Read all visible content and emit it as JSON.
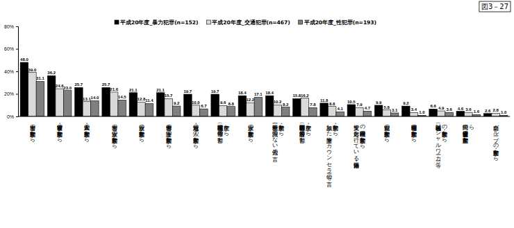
{
  "chart_data": {
    "type": "bar",
    "title": "図3－27",
    "categories": [
      "加害者の言動・態度から",
      "警察官・検事の言動・態度から",
      "友人・知人の言動・態度から",
      "加害者の家族の言動・態度から",
      "親族の言動・態度から",
      "加害者側の弁護士の言動・態度から",
      "近所・地域の人の言動・態度から",
      "職場関係者（上司や同僚等）の言動・態度から",
      "家族の言動・態度から",
      "世間一般（全く面識のない他人）の言動・態度から",
      "医療関係者（医師や看護師等）の言動・態度から",
      "相談した弁護士やカウンセラー等の言動・態度から",
      "支援や対応を行っている国・自治体等の行政機関の言動・態度から",
      "裁判官の言動・態度から",
      "報道関係者の言動・態度から",
      "福祉関係者（ソーシャルワーカー等）の言動・態度から",
      "民間の被害者支援団体の言動・態度から",
      "自助グループの言動・態度から"
    ],
    "series": [
      {
        "name": "平成20年度_暴力犯罪(n=152)",
        "color": "#000000",
        "values": [
          48.0,
          36.2,
          25.7,
          25.7,
          21.1,
          21.1,
          19.7,
          19.7,
          18.4,
          18.4,
          15.8,
          11.8,
          10.5,
          9.9,
          9.2,
          6.6,
          4.6,
          2.6
        ]
      },
      {
        "name": "平成20年度_交通犯罪(n=467)",
        "color": "#d9d9d9",
        "values": [
          39.0,
          24.6,
          13.1,
          21.6,
          12.8,
          15.7,
          10.0,
          9.6,
          12.2,
          10.2,
          16.2,
          8.8,
          7.9,
          5.8,
          3.4,
          4.9,
          3.6,
          2.8
        ]
      },
      {
        "name": "平成20年度_性犯罪(n=193)",
        "color": "#808080",
        "values": [
          31.1,
          23.0,
          14.0,
          14.5,
          11.4,
          9.2,
          6.7,
          8.8,
          17.1,
          8.2,
          7.8,
          4.1,
          4.7,
          3.1,
          1.0,
          3.6,
          1.6,
          1.0
        ]
      }
    ],
    "ylim": [
      0,
      80
    ],
    "yticks": [
      {
        "value": 0,
        "label": "0%"
      },
      {
        "value": 20,
        "label": "20%"
      },
      {
        "value": 40,
        "label": "40%"
      },
      {
        "value": 60,
        "label": "60%"
      },
      {
        "value": 80,
        "label": "80%"
      }
    ],
    "grid": false,
    "legend": "top",
    "data_labels": true
  }
}
